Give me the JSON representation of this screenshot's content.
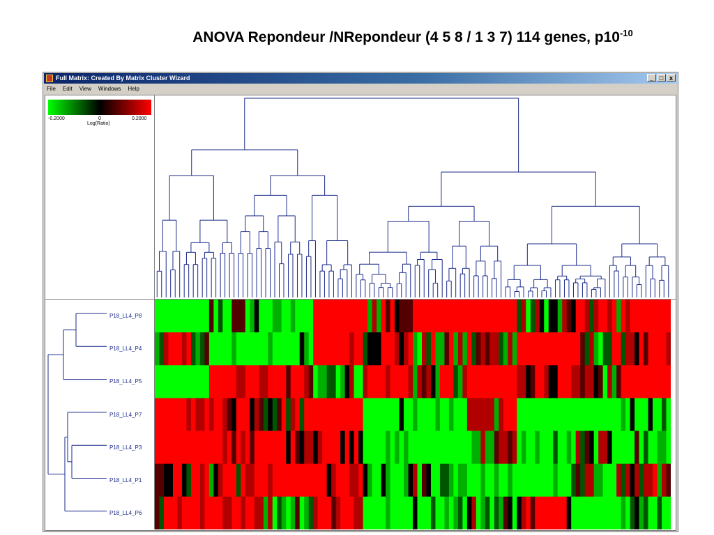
{
  "slide": {
    "title": "ANOVA Repondeur /NRepondeur (4 5 8 / 1 3 7) 114 genes, p10",
    "title_exp": "-10"
  },
  "window": {
    "title": "Full Matrix: Created By Matrix Cluster Wizard",
    "buttons": {
      "minimize": "_",
      "maximize": "□",
      "close": "x"
    }
  },
  "menu": [
    "File",
    "Edit",
    "View",
    "Windows",
    "Help"
  ],
  "legend": {
    "min": "-0.2000",
    "mid": "0",
    "max": "0.2000",
    "unit": "Log(Ratio)",
    "colors": {
      "low": "#00ff00",
      "mid": "#000000",
      "high": "#ff0000"
    }
  },
  "rows": [
    "P18_LL4_P8",
    "P18_LL4_P4",
    "P18_LL4_P5",
    "P18_LL4_P7",
    "P18_LL4_P3",
    "P18_LL4_P1",
    "P18_LL4_P6"
  ],
  "dendrogram_color": "#1a2a8a"
}
